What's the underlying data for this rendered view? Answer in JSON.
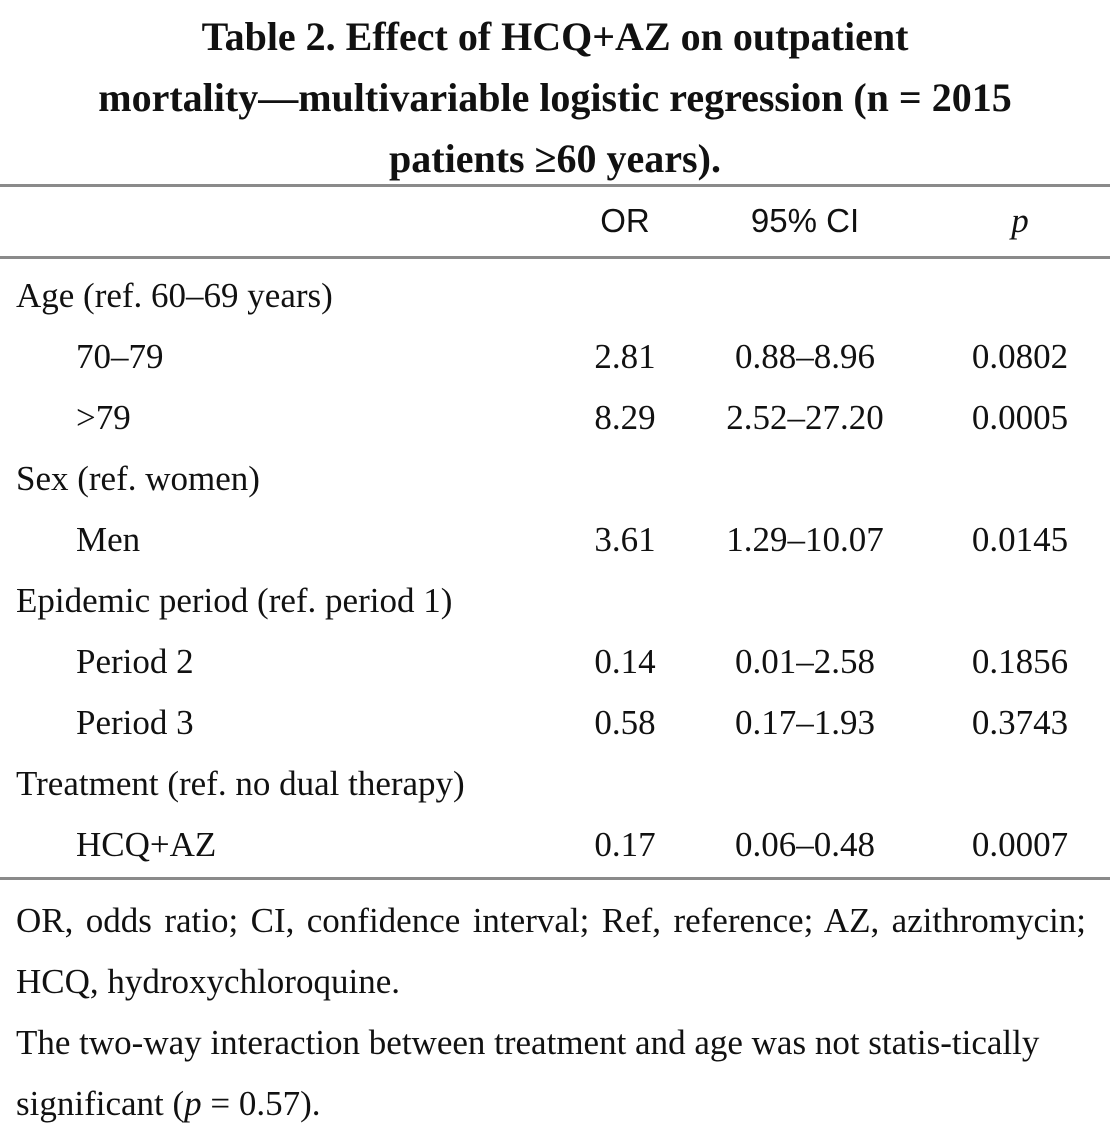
{
  "title": {
    "line1": "Table 2. Effect of HCQ+AZ on outpatient",
    "line2": "mortality—multivariable logistic regression (n = 2015",
    "line3": "patients ≥60 years)."
  },
  "table": {
    "headers": [
      "",
      "OR",
      "95% CI",
      "p"
    ],
    "rows": [
      {
        "label": "Age (ref. 60–69 years)",
        "indent": false,
        "or": "",
        "ci": "",
        "p": ""
      },
      {
        "label": "70–79",
        "indent": true,
        "or": "2.81",
        "ci": "0.88–8.96",
        "p": "0.0802"
      },
      {
        "label": ">79",
        "indent": true,
        "or": "8.29",
        "ci": "2.52–27.20",
        "p": "0.0005"
      },
      {
        "label": "Sex (ref. women)",
        "indent": false,
        "or": "",
        "ci": "",
        "p": ""
      },
      {
        "label": "Men",
        "indent": true,
        "or": "3.61",
        "ci": "1.29–10.07",
        "p": "0.0145"
      },
      {
        "label": "Epidemic period (ref. period 1)",
        "indent": false,
        "or": "",
        "ci": "",
        "p": ""
      },
      {
        "label": "Period 2",
        "indent": true,
        "or": "0.14",
        "ci": "0.01–2.58",
        "p": "0.1856"
      },
      {
        "label": "Period 3",
        "indent": true,
        "or": "0.58",
        "ci": "0.17–1.93",
        "p": "0.3743"
      },
      {
        "label": "Treatment (ref. no dual therapy)",
        "indent": false,
        "or": "",
        "ci": "",
        "p": ""
      },
      {
        "label": "HCQ+AZ",
        "indent": true,
        "or": "0.17",
        "ci": "0.06–0.48",
        "p": "0.0007"
      }
    ]
  },
  "notes": {
    "abbreviations": "OR, odds ratio; CI, confidence interval; Ref, reference; AZ, azithromycin; HCQ, hydroxychloroquine.",
    "interaction_before": "The two-way interaction between treatment and age was not statis-tically significant (",
    "interaction_p_symbol": "p",
    "interaction_after": " = 0.57)."
  }
}
